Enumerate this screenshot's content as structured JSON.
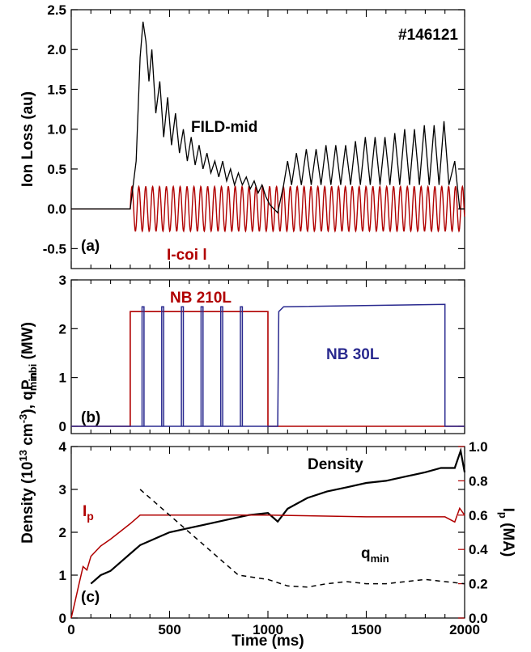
{
  "colors": {
    "black": "#000000",
    "red": "#b00000",
    "blue": "#2a2a8f"
  },
  "chart_data": [
    {
      "panel": "(a)",
      "type": "line",
      "ylabel": "Ion Loss (au)",
      "xlim": [
        0,
        2000
      ],
      "ylim": [
        -0.75,
        2.5
      ],
      "yticks": [
        -0.5,
        0.0,
        0.5,
        1.0,
        1.5,
        2.0,
        2.5
      ],
      "ytick_labels": [
        "-0.5",
        "0.0",
        "0.5",
        "1.0",
        "1.5",
        "2.0",
        "2.5"
      ],
      "annotations": {
        "shot": "#146121",
        "fild": "FILD-mid",
        "icoil": "I-coi l"
      },
      "series": [
        {
          "name": "FILD-mid",
          "color": "#000000",
          "points": [
            [
              0,
              0.0
            ],
            [
              300,
              0.0
            ],
            [
              330,
              0.6
            ],
            [
              350,
              1.9
            ],
            [
              365,
              2.35
            ],
            [
              380,
              2.1
            ],
            [
              395,
              1.6
            ],
            [
              410,
              2.0
            ],
            [
              430,
              1.2
            ],
            [
              450,
              1.6
            ],
            [
              470,
              0.9
            ],
            [
              490,
              1.4
            ],
            [
              510,
              0.8
            ],
            [
              530,
              1.2
            ],
            [
              550,
              0.7
            ],
            [
              570,
              1.0
            ],
            [
              590,
              0.6
            ],
            [
              610,
              0.9
            ],
            [
              630,
              0.55
            ],
            [
              650,
              0.8
            ],
            [
              670,
              0.5
            ],
            [
              690,
              0.7
            ],
            [
              710,
              0.45
            ],
            [
              730,
              0.6
            ],
            [
              750,
              0.4
            ],
            [
              770,
              0.6
            ],
            [
              790,
              0.35
            ],
            [
              810,
              0.5
            ],
            [
              830,
              0.3
            ],
            [
              850,
              0.45
            ],
            [
              870,
              0.3
            ],
            [
              890,
              0.4
            ],
            [
              910,
              0.25
            ],
            [
              930,
              0.35
            ],
            [
              950,
              0.2
            ],
            [
              970,
              0.3
            ],
            [
              990,
              0.15
            ],
            [
              1010,
              0.05
            ],
            [
              1050,
              -0.05
            ],
            [
              1080,
              0.3
            ],
            [
              1100,
              0.6
            ],
            [
              1120,
              0.3
            ],
            [
              1145,
              0.7
            ],
            [
              1170,
              0.3
            ],
            [
              1195,
              0.75
            ],
            [
              1220,
              0.3
            ],
            [
              1245,
              0.75
            ],
            [
              1270,
              0.3
            ],
            [
              1295,
              0.8
            ],
            [
              1320,
              0.3
            ],
            [
              1345,
              0.8
            ],
            [
              1370,
              0.3
            ],
            [
              1395,
              0.8
            ],
            [
              1420,
              0.3
            ],
            [
              1445,
              0.85
            ],
            [
              1470,
              0.3
            ],
            [
              1495,
              0.9
            ],
            [
              1520,
              0.3
            ],
            [
              1545,
              0.9
            ],
            [
              1570,
              0.3
            ],
            [
              1595,
              0.9
            ],
            [
              1620,
              0.3
            ],
            [
              1645,
              0.95
            ],
            [
              1670,
              0.3
            ],
            [
              1695,
              1.0
            ],
            [
              1720,
              0.3
            ],
            [
              1745,
              1.0
            ],
            [
              1770,
              0.3
            ],
            [
              1795,
              1.05
            ],
            [
              1820,
              0.3
            ],
            [
              1845,
              1.05
            ],
            [
              1870,
              0.3
            ],
            [
              1895,
              1.1
            ],
            [
              1920,
              0.3
            ],
            [
              1950,
              0.6
            ],
            [
              1975,
              0.0
            ],
            [
              2000,
              0.0
            ]
          ]
        },
        {
          "name": "I-coil",
          "color": "#b00000",
          "baseline": 0.0,
          "onset": 300,
          "amplitude": 0.28,
          "period_ms": 35
        }
      ]
    },
    {
      "panel": "(b)",
      "type": "line",
      "ylabel": "P",
      "ylabel_sub": "nbi",
      "ylabel_unit": " (MW)",
      "xlim": [
        0,
        2000
      ],
      "ylim": [
        -0.15,
        3
      ],
      "yticks": [
        0,
        1,
        2,
        3
      ],
      "ytick_labels": [
        "0",
        "1",
        "2",
        "3"
      ],
      "annotations": {
        "nb210": "NB 210L",
        "nb30": "NB 30L"
      },
      "series": [
        {
          "name": "NB 210L",
          "color": "#b00000",
          "points": [
            [
              0,
              0
            ],
            [
              300,
              0
            ],
            [
              300,
              2.35
            ],
            [
              1000,
              2.35
            ],
            [
              1000,
              0
            ],
            [
              2000,
              0
            ]
          ]
        },
        {
          "name": "NB 30L",
          "color": "#2a2a8f",
          "pulses": [
            [
              360,
              370
            ],
            [
              460,
              470
            ],
            [
              560,
              570
            ],
            [
              660,
              670
            ],
            [
              760,
              770
            ],
            [
              860,
              870
            ]
          ],
          "points": [
            [
              0,
              0
            ],
            [
              1050,
              0
            ],
            [
              1055,
              2.35
            ],
            [
              1080,
              2.45
            ],
            [
              1900,
              2.5
            ],
            [
              1900,
              0
            ],
            [
              2000,
              0
            ]
          ]
        }
      ]
    },
    {
      "panel": "(c)",
      "type": "line",
      "xlabel": "Time (ms)",
      "ylabel_left": "Density (10",
      "ylabel_left_sup": "13",
      "ylabel_left_unit": " cm",
      "ylabel_left_sup2": "-3",
      "ylabel_left_end": "), q",
      "ylabel_left_sub": "min",
      "ylabel_right": "I",
      "ylabel_right_sub": "p",
      "ylabel_right_unit": " (MA)",
      "xlim": [
        0,
        2000
      ],
      "ylim_left": [
        0,
        4
      ],
      "ylim_right": [
        0,
        1.0
      ],
      "xticks": [
        0,
        500,
        1000,
        1500,
        2000
      ],
      "xtick_labels": [
        "0",
        "500",
        "1000",
        "1500",
        "2000"
      ],
      "yticks_left": [
        0,
        1,
        2,
        3,
        4
      ],
      "ytick_labels_left": [
        "0",
        "1",
        "2",
        "3",
        "4"
      ],
      "yticks_right": [
        0.0,
        0.2,
        0.4,
        0.6,
        0.8,
        1.0
      ],
      "ytick_labels_right": [
        "0.0",
        "0.2",
        "0.4",
        "0.6",
        "0.8",
        "1.0"
      ],
      "annotations": {
        "density": "Density",
        "ip": "I",
        "ip_sub": "p",
        "qmin": "q",
        "qmin_sub": "min"
      },
      "series": [
        {
          "name": "Density",
          "color": "#000000",
          "axis": "left",
          "points": [
            [
              100,
              0.8
            ],
            [
              150,
              1.0
            ],
            [
              200,
              1.1
            ],
            [
              250,
              1.3
            ],
            [
              300,
              1.5
            ],
            [
              350,
              1.7
            ],
            [
              400,
              1.8
            ],
            [
              450,
              1.9
            ],
            [
              500,
              2.0
            ],
            [
              600,
              2.1
            ],
            [
              700,
              2.2
            ],
            [
              800,
              2.3
            ],
            [
              900,
              2.4
            ],
            [
              1000,
              2.45
            ],
            [
              1050,
              2.25
            ],
            [
              1100,
              2.55
            ],
            [
              1200,
              2.8
            ],
            [
              1300,
              2.95
            ],
            [
              1400,
              3.05
            ],
            [
              1500,
              3.15
            ],
            [
              1600,
              3.2
            ],
            [
              1700,
              3.3
            ],
            [
              1800,
              3.4
            ],
            [
              1880,
              3.5
            ],
            [
              1950,
              3.5
            ],
            [
              1980,
              3.9
            ],
            [
              2000,
              3.4
            ]
          ]
        },
        {
          "name": "I_p",
          "color": "#b00000",
          "axis": "right",
          "points": [
            [
              0,
              0.0
            ],
            [
              20,
              0.1
            ],
            [
              40,
              0.2
            ],
            [
              60,
              0.3
            ],
            [
              80,
              0.28
            ],
            [
              100,
              0.36
            ],
            [
              150,
              0.42
            ],
            [
              200,
              0.46
            ],
            [
              300,
              0.55
            ],
            [
              350,
              0.6
            ],
            [
              1000,
              0.6
            ],
            [
              1500,
              0.59
            ],
            [
              1900,
              0.59
            ],
            [
              1950,
              0.56
            ],
            [
              1975,
              0.64
            ],
            [
              2000,
              0.6
            ]
          ]
        },
        {
          "name": "q_min",
          "color": "#000000",
          "axis": "left",
          "dashed": true,
          "points": [
            [
              350,
              3.0
            ],
            [
              500,
              2.4
            ],
            [
              700,
              1.6
            ],
            [
              850,
              1.0
            ],
            [
              1000,
              0.9
            ],
            [
              1100,
              0.75
            ],
            [
              1200,
              0.72
            ],
            [
              1300,
              0.8
            ],
            [
              1400,
              0.85
            ],
            [
              1500,
              0.8
            ],
            [
              1600,
              0.8
            ],
            [
              1700,
              0.85
            ],
            [
              1800,
              0.9
            ],
            [
              1900,
              0.85
            ],
            [
              2000,
              0.8
            ]
          ]
        }
      ]
    }
  ]
}
